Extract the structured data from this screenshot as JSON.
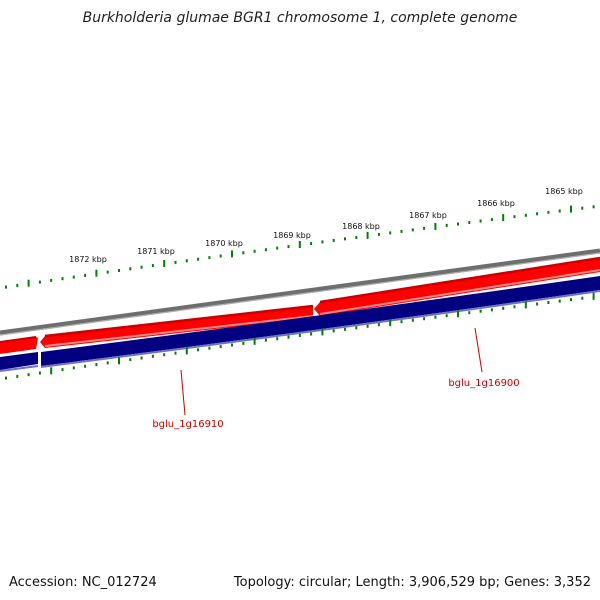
{
  "title": "Burkholderia glumae BGR1 chromosome 1, complete genome",
  "footer": {
    "accession": "Accession: NC_012724",
    "summary": "Topology: circular; Length: 3,906,529 bp; Genes: 3,352"
  },
  "scale_labels": [
    "1872 kbp",
    "1871 kbp",
    "1870 kbp",
    "1869 kbp",
    "1868 kbp",
    "1867 kbp",
    "1866 kbp",
    "1865 kbp"
  ],
  "genes": [
    "bglu_1g16910",
    "bglu_1g16900"
  ],
  "colors": {
    "forward_strand": "#ff0000",
    "reverse_strand": "#000080",
    "backbone": "#808080",
    "ticks": "#008000",
    "gene_label": "#cc0000"
  }
}
